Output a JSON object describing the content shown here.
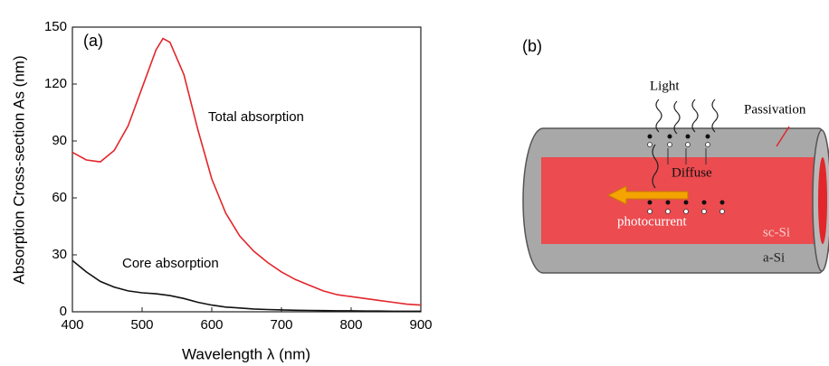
{
  "chart_data": {
    "type": "line",
    "panel_label": "(a)",
    "xlabel": "Wavelength λ (nm)",
    "ylabel": "Absorption Cross-section As (nm)",
    "x": [
      400,
      420,
      440,
      460,
      480,
      500,
      520,
      530,
      540,
      560,
      580,
      600,
      620,
      640,
      660,
      680,
      700,
      720,
      740,
      760,
      780,
      800,
      820,
      840,
      860,
      880,
      900
    ],
    "series": [
      {
        "name": "Total absorption",
        "color": "#e3262b",
        "values": [
          84,
          80,
          79,
          85,
          98,
          118,
          138,
          144,
          142,
          125,
          96,
          70,
          52,
          40,
          32,
          26,
          21,
          17,
          14,
          11,
          9,
          8,
          7,
          6,
          5,
          4,
          3.5
        ]
      },
      {
        "name": "Core absorption",
        "color": "#111111",
        "values": [
          27,
          21,
          16,
          13,
          11,
          10,
          9.5,
          9,
          8.5,
          7,
          5,
          3.5,
          2.5,
          2,
          1.5,
          1.2,
          1,
          0.8,
          0.7,
          0.6,
          0.5,
          0.5,
          0.4,
          0.4,
          0.3,
          0.3,
          0.3
        ]
      }
    ],
    "xlim": [
      400,
      900
    ],
    "xticks": [
      400,
      500,
      600,
      700,
      800,
      900
    ],
    "ylim": [
      0,
      150
    ],
    "yticks": [
      0,
      30,
      60,
      90,
      120,
      150
    ]
  },
  "diagram": {
    "panel_label": "(b)",
    "light": "Light",
    "passivation": "Passivation",
    "diffuse": "Diffuse",
    "photocurrent": "photocurrent",
    "core": "sc-Si",
    "shell": "a-Si"
  }
}
